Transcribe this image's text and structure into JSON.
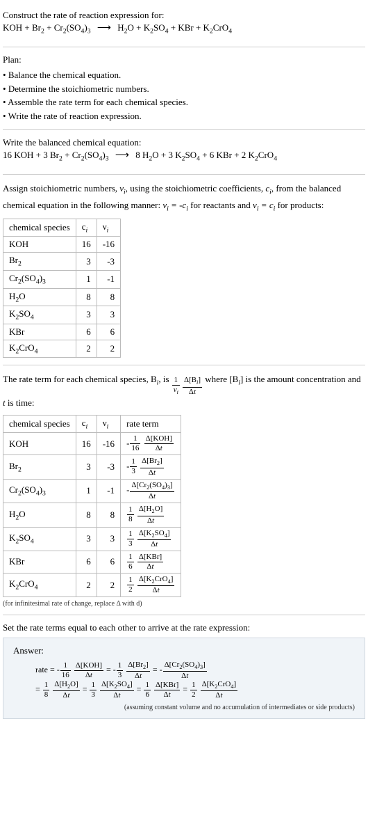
{
  "prompt": {
    "title": "Construct the rate of reaction expression for:",
    "reactants": [
      "KOH",
      "Br<sub>2</sub>",
      "Cr<sub>2</sub>(SO<sub>4</sub>)<sub>3</sub>"
    ],
    "products": [
      "H<sub>2</sub>O",
      "K<sub>2</sub>SO<sub>4</sub>",
      "KBr",
      "K<sub>2</sub>CrO<sub>4</sub>"
    ]
  },
  "plan": {
    "title": "Plan:",
    "items": [
      "Balance the chemical equation.",
      "Determine the stoichiometric numbers.",
      "Assemble the rate term for each chemical species.",
      "Write the rate of reaction expression."
    ]
  },
  "balanced": {
    "title": "Write the balanced chemical equation:",
    "reactants": [
      "16 KOH",
      "3 Br<sub>2</sub>",
      "Cr<sub>2</sub>(SO<sub>4</sub>)<sub>3</sub>"
    ],
    "products": [
      "8 H<sub>2</sub>O",
      "3 K<sub>2</sub>SO<sub>4</sub>",
      "6 KBr",
      "2 K<sub>2</sub>CrO<sub>4</sub>"
    ]
  },
  "stoich": {
    "intro_a": "Assign stoichiometric numbers, ",
    "intro_b": ", using the stoichiometric coefficients, ",
    "intro_c": ", from the balanced chemical equation in the following manner: ",
    "intro_d": " for reactants and ",
    "intro_e": " for products:",
    "headers": [
      "chemical species",
      "c<sub><i>i</i></sub>",
      "ν<sub><i>i</i></sub>"
    ],
    "rows": [
      {
        "sp": "KOH",
        "c": "16",
        "v": "-16"
      },
      {
        "sp": "Br<sub>2</sub>",
        "c": "3",
        "v": "-3"
      },
      {
        "sp": "Cr<sub>2</sub>(SO<sub>4</sub>)<sub>3</sub>",
        "c": "1",
        "v": "-1"
      },
      {
        "sp": "H<sub>2</sub>O",
        "c": "8",
        "v": "8"
      },
      {
        "sp": "K<sub>2</sub>SO<sub>4</sub>",
        "c": "3",
        "v": "3"
      },
      {
        "sp": "KBr",
        "c": "6",
        "v": "6"
      },
      {
        "sp": "K<sub>2</sub>CrO<sub>4</sub>",
        "c": "2",
        "v": "2"
      }
    ]
  },
  "rateterms": {
    "intro_a": "The rate term for each chemical species, B",
    "intro_b": ", is ",
    "intro_c": " where [B",
    "intro_d": "] is the amount concentration and ",
    "intro_e": " is time:",
    "headers": [
      "chemical species",
      "c<sub><i>i</i></sub>",
      "ν<sub><i>i</i></sub>",
      "rate term"
    ],
    "rows": [
      {
        "sp": "KOH",
        "c": "16",
        "v": "-16",
        "sign": "-",
        "coef": "16",
        "spc": "KOH"
      },
      {
        "sp": "Br<sub>2</sub>",
        "c": "3",
        "v": "-3",
        "sign": "-",
        "coef": "3",
        "spc": "Br<sub>2</sub>"
      },
      {
        "sp": "Cr<sub>2</sub>(SO<sub>4</sub>)<sub>3</sub>",
        "c": "1",
        "v": "-1",
        "sign": "-",
        "coef": "",
        "spc": "Cr<sub>2</sub>(SO<sub>4</sub>)<sub>3</sub>"
      },
      {
        "sp": "H<sub>2</sub>O",
        "c": "8",
        "v": "8",
        "sign": "",
        "coef": "8",
        "spc": "H<sub>2</sub>O"
      },
      {
        "sp": "K<sub>2</sub>SO<sub>4</sub>",
        "c": "3",
        "v": "3",
        "sign": "",
        "coef": "3",
        "spc": "K<sub>2</sub>SO<sub>4</sub>"
      },
      {
        "sp": "KBr",
        "c": "6",
        "v": "6",
        "sign": "",
        "coef": "6",
        "spc": "KBr"
      },
      {
        "sp": "K<sub>2</sub>CrO<sub>4</sub>",
        "c": "2",
        "v": "2",
        "sign": "",
        "coef": "2",
        "spc": "K<sub>2</sub>CrO<sub>4</sub>"
      }
    ],
    "note": "(for infinitesimal rate of change, replace Δ with d)"
  },
  "final": {
    "intro": "Set the rate terms equal to each other to arrive at the rate expression:",
    "answer_label": "Answer:",
    "rate_label": "rate",
    "terms": [
      {
        "sign": "-",
        "coef": "16",
        "spc": "KOH"
      },
      {
        "sign": "-",
        "coef": "3",
        "spc": "Br<sub>2</sub>"
      },
      {
        "sign": "-",
        "coef": "",
        "spc": "Cr<sub>2</sub>(SO<sub>4</sub>)<sub>3</sub>"
      },
      {
        "sign": "",
        "coef": "8",
        "spc": "H<sub>2</sub>O"
      },
      {
        "sign": "",
        "coef": "3",
        "spc": "K<sub>2</sub>SO<sub>4</sub>"
      },
      {
        "sign": "",
        "coef": "6",
        "spc": "KBr"
      },
      {
        "sign": "",
        "coef": "2",
        "spc": "K<sub>2</sub>CrO<sub>4</sub>"
      }
    ],
    "note": "(assuming constant volume and no accumulation of intermediates or side products)"
  }
}
